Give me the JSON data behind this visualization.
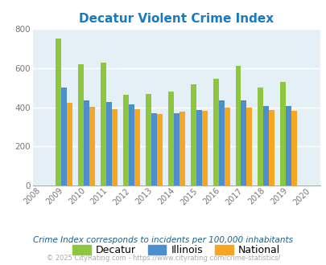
{
  "title": "Decatur Violent Crime Index",
  "years": [
    2009,
    2010,
    2011,
    2012,
    2013,
    2014,
    2015,
    2016,
    2017,
    2018,
    2019
  ],
  "decatur": [
    752,
    622,
    628,
    463,
    468,
    480,
    518,
    547,
    612,
    502,
    532
  ],
  "illinois": [
    500,
    436,
    426,
    415,
    370,
    370,
    388,
    436,
    436,
    406,
    406
  ],
  "national": [
    424,
    402,
    390,
    390,
    365,
    376,
    383,
    398,
    400,
    386,
    382
  ],
  "decatur_color": "#8dc63f",
  "illinois_color": "#4d8fcc",
  "national_color": "#f5a623",
  "background_color": "#e4f0f5",
  "title_color": "#1a7abf",
  "xlim": [
    2007.6,
    2020.4
  ],
  "ylim": [
    0,
    800
  ],
  "yticks": [
    0,
    200,
    400,
    600,
    800
  ],
  "footnote1": "Crime Index corresponds to incidents per 100,000 inhabitants",
  "footnote2": "© 2025 CityRating.com - https://www.cityrating.com/crime-statistics/",
  "legend_labels": [
    "Decatur",
    "Illinois",
    "National"
  ],
  "bar_width": 0.25
}
